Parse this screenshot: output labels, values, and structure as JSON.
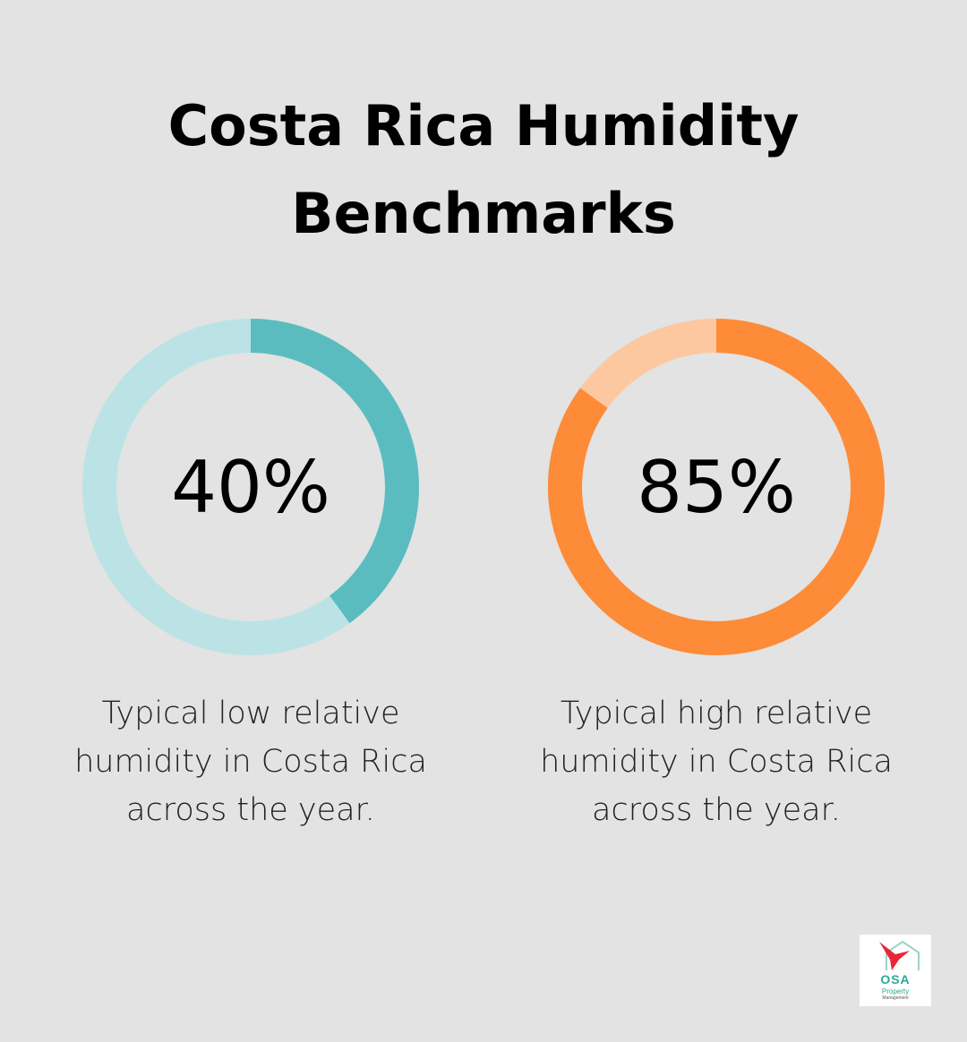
{
  "title": "Costa Rica Humidity Benchmarks",
  "chart_data": [
    {
      "type": "donut",
      "values": [
        40
      ],
      "value_labels": [
        "40%"
      ],
      "ylim": [
        0,
        100
      ],
      "color": "#5bbcc0",
      "track_color": "#bbe3e6",
      "caption": "Typical low relative humidity in Costa Rica across the year."
    },
    {
      "type": "donut",
      "values": [
        85
      ],
      "value_labels": [
        "85%"
      ],
      "ylim": [
        0,
        100
      ],
      "color": "#fd8b37",
      "track_color": "#fdc8a0",
      "caption": "Typical high relative humidity in Costa Rica across the year."
    }
  ],
  "logo": {
    "name": "OSA",
    "line1": "Property",
    "line2": "Management"
  }
}
